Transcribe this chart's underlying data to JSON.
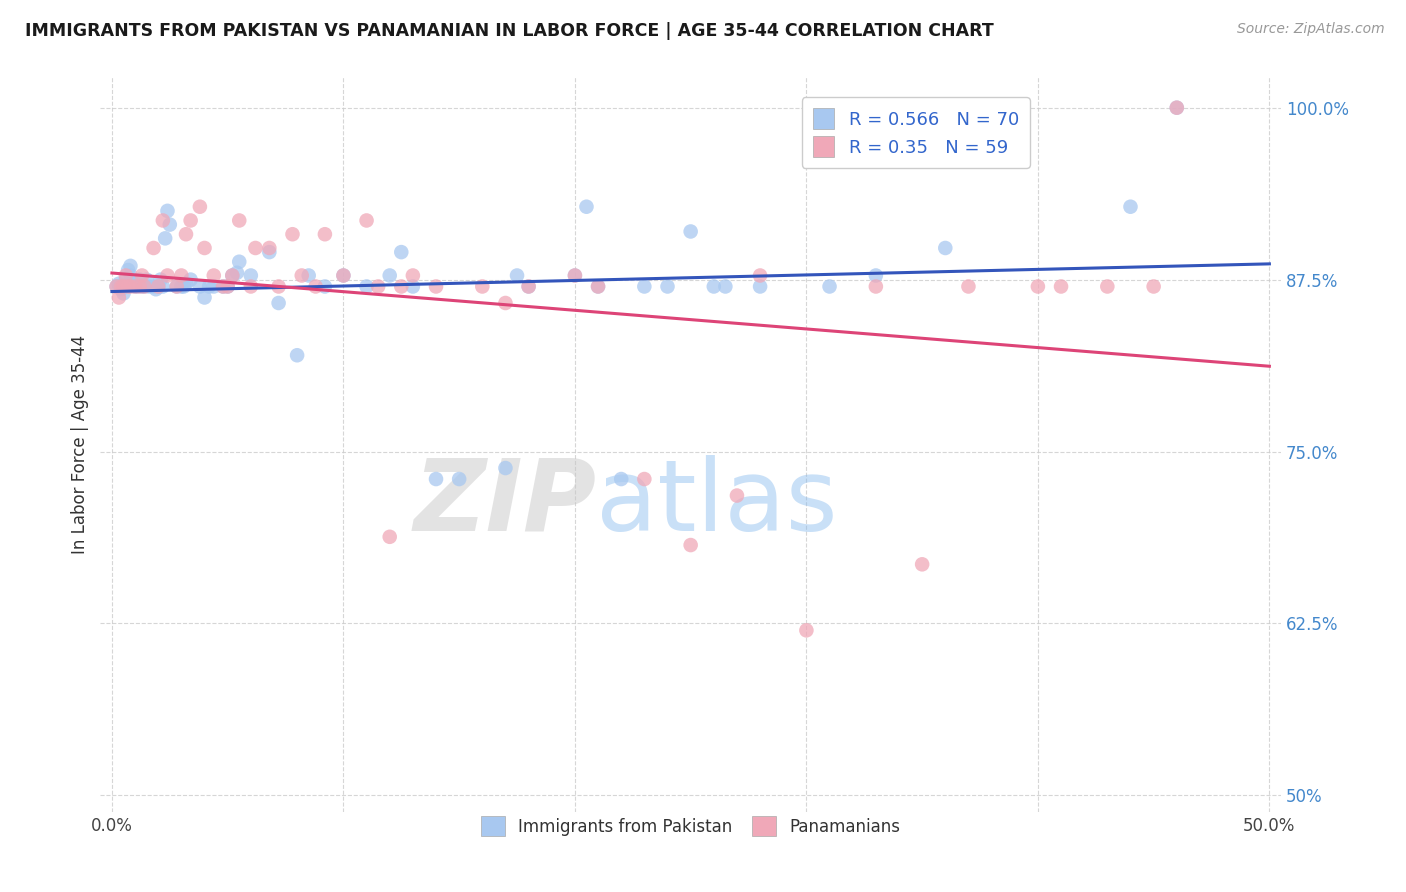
{
  "title": "IMMIGRANTS FROM PAKISTAN VS PANAMANIAN IN LABOR FORCE | AGE 35-44 CORRELATION CHART",
  "source": "Source: ZipAtlas.com",
  "ylabel": "In Labor Force | Age 35-44",
  "xlim": [
    -0.005,
    0.505
  ],
  "ylim": [
    0.488,
    1.022
  ],
  "xticks": [
    0.0,
    0.1,
    0.2,
    0.3,
    0.4,
    0.5
  ],
  "xticklabels": [
    "0.0%",
    "",
    "",
    "",
    "",
    "50.0%"
  ],
  "yticks": [
    0.5,
    0.625,
    0.75,
    0.875,
    1.0
  ],
  "yticklabels": [
    "50%",
    "62.5%",
    "75.0%",
    "87.5%",
    "100.0%"
  ],
  "pakistan_color": "#a8c8f0",
  "panamanian_color": "#f0a8b8",
  "pakistan_R": 0.566,
  "pakistan_N": 70,
  "panamanian_R": 0.35,
  "panamanian_N": 59,
  "trend_pakistan_color": "#3355bb",
  "trend_panamanian_color": "#dd4477",
  "watermark_zip": "ZIP",
  "watermark_atlas": "atlas",
  "legend_labels": [
    "Immigrants from Pakistan",
    "Panamanians"
  ],
  "pakistan_x": [
    0.002,
    0.003,
    0.004,
    0.005,
    0.005,
    0.006,
    0.007,
    0.008,
    0.008,
    0.01,
    0.01,
    0.011,
    0.012,
    0.013,
    0.014,
    0.015,
    0.016,
    0.018,
    0.019,
    0.02,
    0.021,
    0.022,
    0.023,
    0.024,
    0.025,
    0.028,
    0.03,
    0.031,
    0.032,
    0.034,
    0.038,
    0.04,
    0.042,
    0.044,
    0.048,
    0.05,
    0.052,
    0.054,
    0.055,
    0.06,
    0.068,
    0.072,
    0.08,
    0.085,
    0.092,
    0.1,
    0.11,
    0.12,
    0.125,
    0.13,
    0.14,
    0.15,
    0.17,
    0.175,
    0.18,
    0.2,
    0.205,
    0.21,
    0.22,
    0.23,
    0.24,
    0.25,
    0.26,
    0.265,
    0.28,
    0.31,
    0.33,
    0.36,
    0.44,
    0.46
  ],
  "pakistan_y": [
    0.87,
    0.872,
    0.868,
    0.865,
    0.87,
    0.875,
    0.882,
    0.878,
    0.885,
    0.87,
    0.872,
    0.87,
    0.875,
    0.87,
    0.87,
    0.875,
    0.87,
    0.87,
    0.868,
    0.87,
    0.875,
    0.87,
    0.905,
    0.925,
    0.915,
    0.87,
    0.87,
    0.87,
    0.872,
    0.875,
    0.87,
    0.862,
    0.87,
    0.87,
    0.87,
    0.87,
    0.878,
    0.88,
    0.888,
    0.878,
    0.895,
    0.858,
    0.82,
    0.878,
    0.87,
    0.878,
    0.87,
    0.878,
    0.895,
    0.87,
    0.73,
    0.73,
    0.738,
    0.878,
    0.87,
    0.878,
    0.928,
    0.87,
    0.73,
    0.87,
    0.87,
    0.91,
    0.87,
    0.87,
    0.87,
    0.87,
    0.878,
    0.898,
    0.928,
    1.0
  ],
  "panamanian_x": [
    0.002,
    0.003,
    0.004,
    0.005,
    0.006,
    0.007,
    0.008,
    0.01,
    0.012,
    0.013,
    0.014,
    0.018,
    0.02,
    0.022,
    0.024,
    0.028,
    0.03,
    0.032,
    0.034,
    0.038,
    0.04,
    0.044,
    0.048,
    0.05,
    0.052,
    0.055,
    0.06,
    0.062,
    0.068,
    0.072,
    0.078,
    0.082,
    0.088,
    0.092,
    0.1,
    0.11,
    0.115,
    0.12,
    0.125,
    0.13,
    0.14,
    0.16,
    0.17,
    0.18,
    0.2,
    0.21,
    0.23,
    0.25,
    0.27,
    0.28,
    0.3,
    0.33,
    0.35,
    0.37,
    0.4,
    0.41,
    0.43,
    0.45,
    0.46
  ],
  "panamanian_y": [
    0.87,
    0.862,
    0.87,
    0.87,
    0.878,
    0.87,
    0.87,
    0.87,
    0.87,
    0.878,
    0.87,
    0.898,
    0.87,
    0.918,
    0.878,
    0.87,
    0.878,
    0.908,
    0.918,
    0.928,
    0.898,
    0.878,
    0.87,
    0.87,
    0.878,
    0.918,
    0.87,
    0.898,
    0.898,
    0.87,
    0.908,
    0.878,
    0.87,
    0.908,
    0.878,
    0.918,
    0.87,
    0.688,
    0.87,
    0.878,
    0.87,
    0.87,
    0.858,
    0.87,
    0.878,
    0.87,
    0.73,
    0.682,
    0.718,
    0.878,
    0.62,
    0.87,
    0.668,
    0.87,
    0.87,
    0.87,
    0.87,
    0.87,
    1.0
  ]
}
